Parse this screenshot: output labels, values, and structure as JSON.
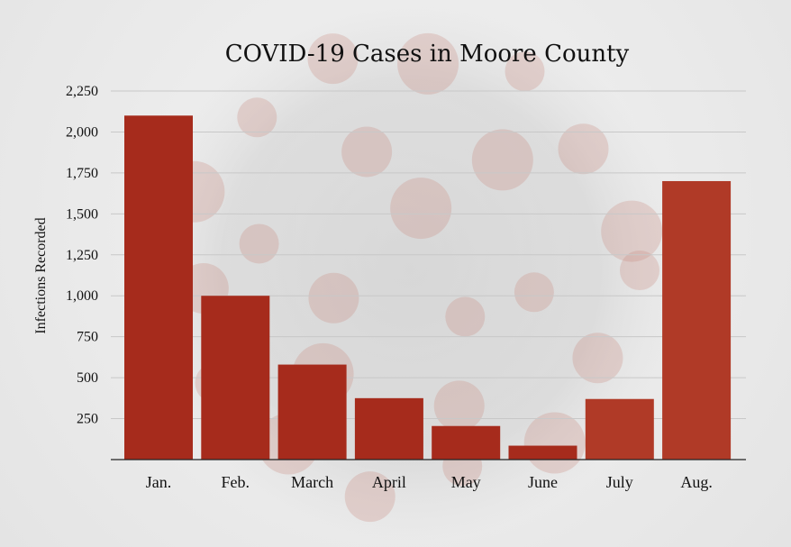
{
  "chart_data": {
    "type": "bar",
    "title": "COVID-19 Cases in Moore County",
    "xlabel": "",
    "ylabel": "Infections Recorded",
    "categories": [
      "Jan.",
      "Feb.",
      "March",
      "April",
      "May",
      "June",
      "July",
      "Aug."
    ],
    "values": [
      2100,
      1000,
      580,
      375,
      205,
      85,
      370,
      1700
    ],
    "yticks": [
      "250",
      "500",
      "750",
      "1,000",
      "1,250",
      "1,500",
      "1,750",
      "2,000",
      "2,250"
    ],
    "ytick_values": [
      250,
      500,
      750,
      1000,
      1250,
      1500,
      1750,
      2000,
      2250
    ],
    "ylim": [
      0,
      2250
    ],
    "grid": true,
    "legend": "none"
  },
  "colors": {
    "bar": "#a62b1c",
    "bar_light": "#b03a27",
    "grid": "#c8c8c8",
    "axis": "#222222",
    "background_virus_gray": "#bdbdbd",
    "background_virus_red": "#c9877c"
  }
}
